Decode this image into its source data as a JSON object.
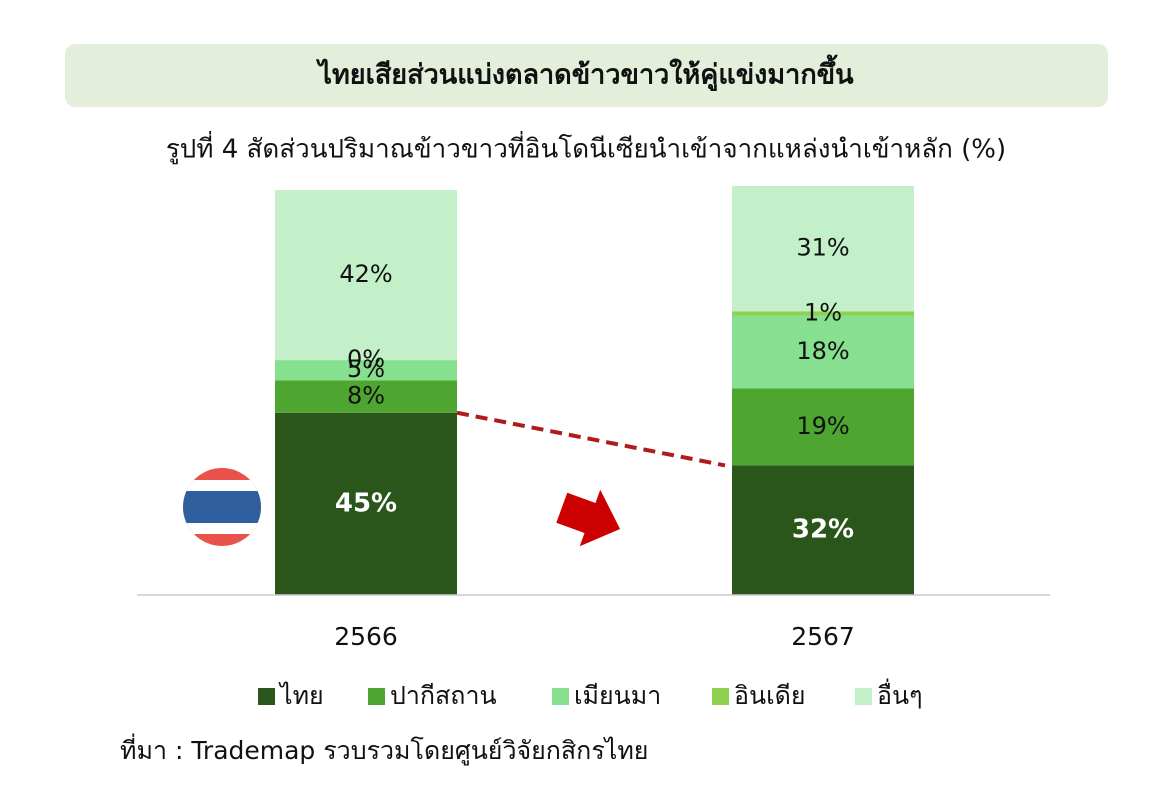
{
  "chart_data": {
    "type": "bar",
    "stacked": true,
    "title": "ไทยเสียส่วนแบ่งตลาดข้าวขาวให้คู่แข่งมากขึ้น",
    "subtitle": "รูปที่ 4 สัดส่วนปริมาณข้าวขาวที่อินโดนีเซียนำเข้าจากแหล่งนำเข้าหลัก (%)",
    "source": "ที่มา : Trademap รวบรวมโดยศูนย์วิจัยกสิกรไทย",
    "categories": [
      "2566",
      "2567"
    ],
    "ylim": [
      0,
      100
    ],
    "series": [
      {
        "name": "ไทย",
        "color": "#2a561c",
        "values": [
          45,
          32
        ],
        "value_labels": [
          "45%",
          "32%"
        ]
      },
      {
        "name": "ปากีสถาน",
        "color": "#4ea52f",
        "values": [
          8,
          19
        ],
        "value_labels": [
          "8%",
          "19%"
        ]
      },
      {
        "name": "เมียนมา",
        "color": "#86e08f",
        "values": [
          5,
          18
        ],
        "value_labels": [
          "5%",
          "18%"
        ]
      },
      {
        "name": "อินเดีย",
        "color": "#8fd14f",
        "values": [
          0,
          1
        ],
        "value_labels": [
          "0%",
          "1%"
        ]
      },
      {
        "name": "อื่นๆ",
        "color": "#c3f0c8",
        "values": [
          42,
          31
        ],
        "value_labels": [
          "42%",
          "31%"
        ]
      }
    ]
  }
}
